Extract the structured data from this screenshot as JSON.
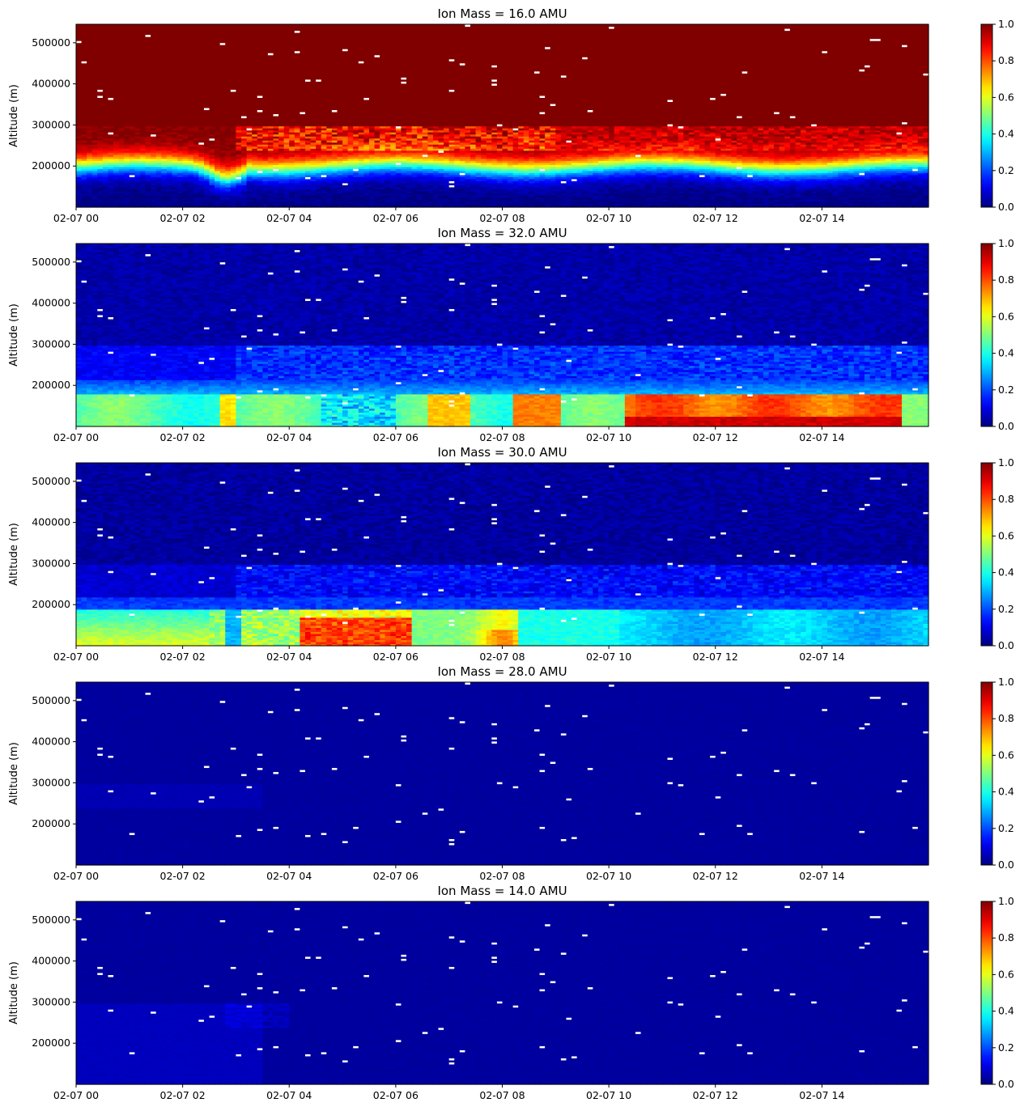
{
  "figure": {
    "colormap": "jet",
    "y_axis_label": "Altitude (m)"
  },
  "chart_data": [
    {
      "type": "heatmap",
      "title": "Ion Mass = 16.0 AMU",
      "ion_mass_amu": 16.0,
      "ylabel": "Altitude (m)",
      "xlabel": "",
      "x_range_hours": [
        0,
        16
      ],
      "x_ticks": [
        "02-07 00",
        "02-07 02",
        "02-07 04",
        "02-07 06",
        "02-07 08",
        "02-07 10",
        "02-07 12",
        "02-07 14"
      ],
      "ylim": [
        100000,
        545000
      ],
      "y_ticks": [
        "200000",
        "300000",
        "400000",
        "500000"
      ],
      "colorbar": {
        "range": [
          0.0,
          1.0
        ],
        "ticks": [
          "0.0",
          "0.2",
          "0.4",
          "0.6",
          "0.8",
          "1.0"
        ]
      },
      "profile": "o_plus"
    },
    {
      "type": "heatmap",
      "title": "Ion Mass = 32.0 AMU",
      "ion_mass_amu": 32.0,
      "ylabel": "Altitude (m)",
      "xlabel": "",
      "x_range_hours": [
        0,
        16
      ],
      "x_ticks": [
        "02-07 00",
        "02-07 02",
        "02-07 04",
        "02-07 06",
        "02-07 08",
        "02-07 10",
        "02-07 12",
        "02-07 14"
      ],
      "ylim": [
        100000,
        545000
      ],
      "y_ticks": [
        "200000",
        "300000",
        "400000",
        "500000"
      ],
      "colorbar": {
        "range": [
          0.0,
          1.0
        ],
        "ticks": [
          "0.0",
          "0.2",
          "0.4",
          "0.6",
          "0.8",
          "1.0"
        ]
      },
      "profile": "o2_plus"
    },
    {
      "type": "heatmap",
      "title": "Ion Mass = 30.0 AMU",
      "ion_mass_amu": 30.0,
      "ylabel": "Altitude (m)",
      "xlabel": "",
      "x_range_hours": [
        0,
        16
      ],
      "x_ticks": [
        "02-07 00",
        "02-07 02",
        "02-07 04",
        "02-07 06",
        "02-07 08",
        "02-07 10",
        "02-07 12",
        "02-07 14"
      ],
      "ylim": [
        100000,
        545000
      ],
      "y_ticks": [
        "200000",
        "300000",
        "400000",
        "500000"
      ],
      "colorbar": {
        "range": [
          0.0,
          1.0
        ],
        "ticks": [
          "0.0",
          "0.2",
          "0.4",
          "0.6",
          "0.8",
          "1.0"
        ]
      },
      "profile": "no_plus"
    },
    {
      "type": "heatmap",
      "title": "Ion Mass = 28.0 AMU",
      "ion_mass_amu": 28.0,
      "ylabel": "Altitude (m)",
      "xlabel": "",
      "x_range_hours": [
        0,
        16
      ],
      "x_ticks": [
        "02-07 00",
        "02-07 02",
        "02-07 04",
        "02-07 06",
        "02-07 08",
        "02-07 10",
        "02-07 12",
        "02-07 14"
      ],
      "ylim": [
        100000,
        545000
      ],
      "y_ticks": [
        "200000",
        "300000",
        "400000",
        "500000"
      ],
      "colorbar": {
        "range": [
          0.0,
          1.0
        ],
        "ticks": [
          "0.0",
          "0.2",
          "0.4",
          "0.6",
          "0.8",
          "1.0"
        ]
      },
      "profile": "n2_plus"
    },
    {
      "type": "heatmap",
      "title": "Ion Mass = 14.0 AMU",
      "ion_mass_amu": 14.0,
      "ylabel": "Altitude (m)",
      "xlabel": "",
      "x_range_hours": [
        0,
        16
      ],
      "x_ticks": [
        "02-07 00",
        "02-07 02",
        "02-07 04",
        "02-07 06",
        "02-07 08",
        "02-07 10",
        "02-07 12",
        "02-07 14"
      ],
      "ylim": [
        100000,
        545000
      ],
      "y_ticks": [
        "200000",
        "300000",
        "400000",
        "500000"
      ],
      "colorbar": {
        "range": [
          0.0,
          1.0
        ],
        "ticks": [
          "0.0",
          "0.2",
          "0.4",
          "0.6",
          "0.8",
          "1.0"
        ]
      },
      "profile": "n_plus"
    }
  ]
}
